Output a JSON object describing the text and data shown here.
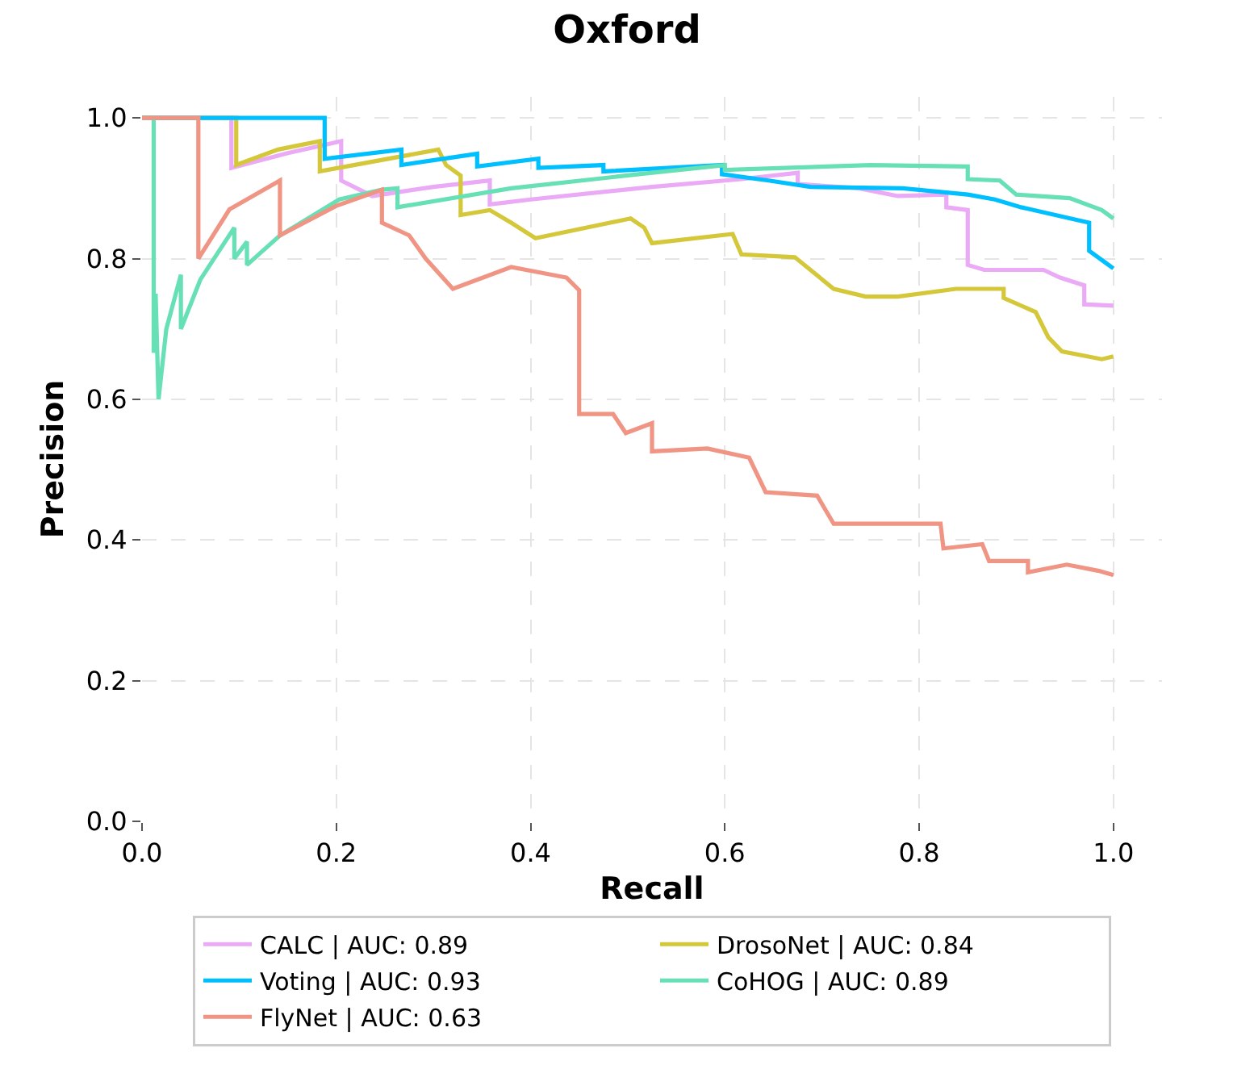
{
  "chart_data": {
    "type": "line",
    "title": "Oxford",
    "xlabel": "Recall",
    "ylabel": "Precision",
    "xlim": [
      0,
      1.05
    ],
    "ylim": [
      0,
      1.03
    ],
    "xticks": [
      {
        "value": 0,
        "label": "0.0"
      },
      0.2,
      0.4,
      0.6,
      0.8,
      {
        "value": 1,
        "label": "1.0"
      }
    ],
    "yticks": [
      {
        "value": 0,
        "label": "0.0"
      },
      0.2,
      0.4,
      0.6,
      0.8,
      {
        "value": 1,
        "label": "1.0"
      }
    ],
    "grid": true,
    "legend": "bottom",
    "line_style": "solid",
    "marker": "none",
    "series": [
      {
        "name": "CALC | AUC: 0.89",
        "color": "#eaaaf5",
        "x": [
          0,
          0.092,
          0.092,
          0.15,
          0.205,
          0.205,
          0.237,
          0.3,
          0.358,
          0.358,
          0.4,
          0.525,
          0.617,
          0.675,
          0.675,
          0.738,
          0.778,
          0.828,
          0.828,
          0.85,
          0.85,
          0.867,
          0.928,
          0.945,
          0.97,
          0.97,
          1.0
        ],
        "values": [
          1,
          1,
          0.929,
          0.95,
          0.967,
          0.911,
          0.889,
          0.902,
          0.911,
          0.877,
          0.884,
          0.902,
          0.913,
          0.922,
          0.906,
          0.9,
          0.889,
          0.891,
          0.873,
          0.869,
          0.791,
          0.784,
          0.784,
          0.773,
          0.762,
          0.735,
          0.733
        ]
      },
      {
        "name": "DrosoNet | AUC: 0.84",
        "color": "#d4c83a",
        "x": [
          0,
          0.097,
          0.097,
          0.14,
          0.183,
          0.183,
          0.305,
          0.313,
          0.328,
          0.328,
          0.358,
          0.38,
          0.405,
          0.503,
          0.517,
          0.525,
          0.608,
          0.617,
          0.672,
          0.712,
          0.745,
          0.778,
          0.838,
          0.887,
          0.887,
          0.92,
          0.933,
          0.947,
          0.988,
          1.0
        ],
        "values": [
          1,
          1,
          0.933,
          0.955,
          0.967,
          0.924,
          0.955,
          0.933,
          0.918,
          0.862,
          0.869,
          0.851,
          0.829,
          0.857,
          0.844,
          0.822,
          0.835,
          0.806,
          0.802,
          0.757,
          0.746,
          0.746,
          0.757,
          0.757,
          0.744,
          0.724,
          0.688,
          0.668,
          0.657,
          0.661
        ]
      },
      {
        "name": "Voting | AUC: 0.93",
        "color": "#00bfff",
        "x": [
          0,
          0.188,
          0.188,
          0.267,
          0.267,
          0.345,
          0.345,
          0.408,
          0.408,
          0.475,
          0.475,
          0.597,
          0.597,
          0.645,
          0.688,
          0.783,
          0.85,
          0.878,
          0.905,
          0.962,
          0.975,
          0.975,
          0.995,
          1.0
        ],
        "values": [
          1,
          1,
          0.942,
          0.955,
          0.933,
          0.949,
          0.931,
          0.942,
          0.929,
          0.933,
          0.924,
          0.933,
          0.92,
          0.911,
          0.902,
          0.9,
          0.891,
          0.884,
          0.873,
          0.855,
          0.851,
          0.811,
          0.791,
          0.786
        ]
      },
      {
        "name": "CoHOG | AUC: 0.89",
        "color": "#66e0b4",
        "x": [
          0,
          0.012,
          0.012,
          0.014,
          0.017,
          0.025,
          0.04,
          0.04,
          0.06,
          0.095,
          0.095,
          0.108,
          0.108,
          0.142,
          0.203,
          0.247,
          0.263,
          0.263,
          0.38,
          0.525,
          0.6,
          0.6,
          0.75,
          0.85,
          0.85,
          0.883,
          0.9,
          0.955,
          0.988,
          1.0
        ],
        "values": [
          1,
          1,
          0.666,
          0.75,
          0.6,
          0.7,
          0.777,
          0.7,
          0.77,
          0.844,
          0.8,
          0.824,
          0.791,
          0.833,
          0.884,
          0.898,
          0.9,
          0.873,
          0.9,
          0.922,
          0.933,
          0.926,
          0.933,
          0.931,
          0.913,
          0.911,
          0.891,
          0.886,
          0.869,
          0.857
        ]
      },
      {
        "name": "FlyNet | AUC: 0.63",
        "color": "#f09484",
        "x": [
          0,
          0.058,
          0.058,
          0.09,
          0.142,
          0.142,
          0.2,
          0.247,
          0.247,
          0.275,
          0.292,
          0.32,
          0.38,
          0.437,
          0.45,
          0.45,
          0.485,
          0.498,
          0.525,
          0.525,
          0.582,
          0.625,
          0.642,
          0.695,
          0.712,
          0.822,
          0.825,
          0.865,
          0.872,
          0.912,
          0.912,
          0.952,
          0.985,
          1.0
        ],
        "values": [
          1,
          1,
          0.8,
          0.87,
          0.911,
          0.833,
          0.875,
          0.898,
          0.851,
          0.833,
          0.8,
          0.757,
          0.788,
          0.773,
          0.755,
          0.579,
          0.579,
          0.552,
          0.566,
          0.526,
          0.53,
          0.517,
          0.468,
          0.463,
          0.423,
          0.423,
          0.388,
          0.394,
          0.37,
          0.37,
          0.354,
          0.365,
          0.356,
          0.35
        ]
      }
    ]
  }
}
